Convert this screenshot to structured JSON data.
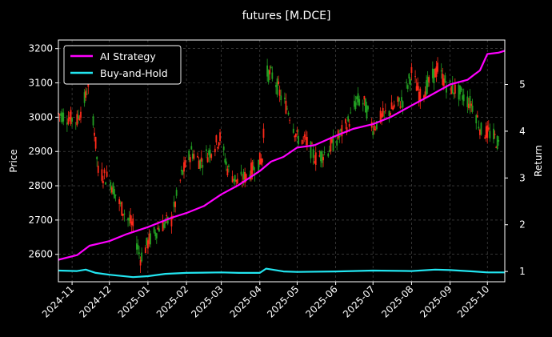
{
  "chart_data": {
    "type": "line",
    "title": "futures [M.DCE]",
    "ylabel": "Price",
    "y2label": "Return",
    "grid": true,
    "legend_placement": "top-left",
    "colors": {
      "background": "#000000",
      "up": "#ff2a1a",
      "down": "#22a022",
      "ai": "#ff00ff",
      "bh": "#22e5f0",
      "grid": "#555555"
    },
    "x_range": [
      "2024-10-21",
      "2025-10-15"
    ],
    "ylim": [
      2520,
      3225
    ],
    "y2lim": [
      0.78,
      5.95
    ],
    "yticks": [
      2600,
      2700,
      2800,
      2900,
      3000,
      3100,
      3200
    ],
    "y2ticks": [
      1,
      2,
      3,
      4,
      5
    ],
    "xticks": [
      "2024-11-01",
      "2024-12-01",
      "2025-01-01",
      "2025-02-01",
      "2025-03-01",
      "2025-04-01",
      "2025-05-01",
      "2025-06-01",
      "2025-07-01",
      "2025-08-01",
      "2025-09-01",
      "2025-10-01"
    ],
    "xtick_labels": [
      "2024-11",
      "2024-12",
      "2025-01",
      "2025-02",
      "2025-03",
      "2025-04",
      "2025-05",
      "2025-06",
      "2025-07",
      "2025-08",
      "2025-09",
      "2025-10"
    ],
    "price_series": {
      "name": "Price",
      "x": [
        "2024-10-21",
        "2024-11-05",
        "2024-11-12",
        "2024-11-15",
        "2024-11-22",
        "2024-12-01",
        "2024-12-10",
        "2024-12-20",
        "2024-12-26",
        "2025-01-02",
        "2025-01-10",
        "2025-01-20",
        "2025-01-28",
        "2025-02-05",
        "2025-02-12",
        "2025-02-20",
        "2025-02-28",
        "2025-03-06",
        "2025-03-14",
        "2025-03-22",
        "2025-03-29",
        "2025-04-03",
        "2025-04-06",
        "2025-04-12",
        "2025-04-18",
        "2025-04-24",
        "2025-05-01",
        "2025-05-08",
        "2025-05-16",
        "2025-05-25",
        "2025-06-05",
        "2025-06-12",
        "2025-06-18",
        "2025-06-24",
        "2025-07-01",
        "2025-07-08",
        "2025-07-15",
        "2025-07-25",
        "2025-08-01",
        "2025-08-08",
        "2025-08-15",
        "2025-08-22",
        "2025-08-30",
        "2025-09-05",
        "2025-09-12",
        "2025-09-20",
        "2025-09-26",
        "2025-10-05",
        "2025-10-10"
      ],
      "y": [
        3010,
        2990,
        3060,
        3120,
        2840,
        2820,
        2740,
        2680,
        2590,
        2640,
        2680,
        2700,
        2830,
        2900,
        2870,
        2900,
        2940,
        2850,
        2810,
        2830,
        2860,
        2880,
        3130,
        3120,
        3060,
        3020,
        2940,
        2930,
        2880,
        2900,
        2950,
        2990,
        3050,
        3040,
        2970,
        3000,
        3020,
        3050,
        3130,
        3060,
        3100,
        3140,
        3090,
        3080,
        3060,
        3030,
        2960,
        2950,
        2920
      ]
    },
    "series": [
      {
        "name": "AI Strategy",
        "x": [
          "2024-10-21",
          "2024-11-05",
          "2024-11-15",
          "2024-12-01",
          "2024-12-15",
          "2025-01-01",
          "2025-01-20",
          "2025-02-01",
          "2025-02-15",
          "2025-03-01",
          "2025-03-15",
          "2025-04-01",
          "2025-04-10",
          "2025-04-20",
          "2025-05-01",
          "2025-05-15",
          "2025-06-01",
          "2025-06-15",
          "2025-07-01",
          "2025-07-15",
          "2025-08-01",
          "2025-08-15",
          "2025-09-01",
          "2025-09-15",
          "2025-09-20",
          "2025-09-25",
          "2025-10-01",
          "2025-10-10",
          "2025-10-15"
        ],
        "values": [
          1.25,
          1.35,
          1.55,
          1.65,
          1.8,
          1.95,
          2.15,
          2.25,
          2.4,
          2.65,
          2.85,
          3.15,
          3.35,
          3.45,
          3.65,
          3.7,
          3.9,
          4.05,
          4.15,
          4.3,
          4.55,
          4.75,
          5.0,
          5.1,
          5.2,
          5.3,
          5.65,
          5.68,
          5.72
        ]
      },
      {
        "name": "Buy-and-Hold",
        "x": [
          "2024-10-21",
          "2024-11-05",
          "2024-11-12",
          "2024-11-20",
          "2024-12-01",
          "2024-12-20",
          "2025-01-01",
          "2025-01-15",
          "2025-02-01",
          "2025-03-01",
          "2025-03-15",
          "2025-04-01",
          "2025-04-06",
          "2025-04-20",
          "2025-05-01",
          "2025-06-01",
          "2025-07-01",
          "2025-08-01",
          "2025-08-20",
          "2025-09-01",
          "2025-09-20",
          "2025-10-01",
          "2025-10-15"
        ],
        "values": [
          1.02,
          1.01,
          1.04,
          0.97,
          0.93,
          0.88,
          0.9,
          0.95,
          0.97,
          0.98,
          0.97,
          0.97,
          1.06,
          1.0,
          0.99,
          1.0,
          1.02,
          1.01,
          1.04,
          1.03,
          1.0,
          0.98,
          0.98
        ]
      }
    ]
  }
}
